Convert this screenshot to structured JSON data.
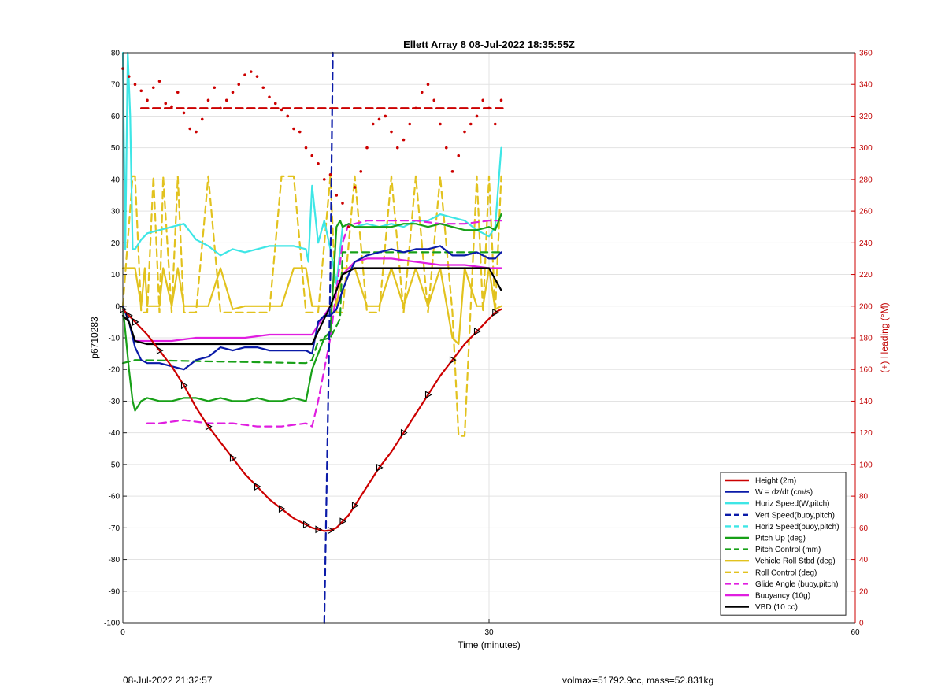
{
  "footer": {
    "left": "08-Jul-2022 21:32:57",
    "right": "volmax=51792.9cc, mass=52.831kg"
  },
  "colors": {
    "red": "#cc0000",
    "blue": "#0a1aa8",
    "cyan": "#3ee6e6",
    "green": "#17a017",
    "yellow": "#e2c21e",
    "magenta": "#e01ee0",
    "black": "#000000",
    "grid": "#e3e3e3"
  },
  "chart_data": {
    "type": "line",
    "title": "Ellett Array 8 08-Jul-2022 18:35:55Z",
    "xlabel": "Time (minutes)",
    "ylabel": "p6710283",
    "y2label": "(+) Heading (°M)",
    "xlim": [
      0,
      60
    ],
    "ylim": [
      -100,
      80
    ],
    "y2lim": [
      0,
      360
    ],
    "xticks": [
      0,
      30,
      60
    ],
    "yticks": [
      -100,
      -90,
      -80,
      -70,
      -60,
      -50,
      -40,
      -30,
      -20,
      -10,
      0,
      10,
      20,
      30,
      40,
      50,
      60,
      70,
      80
    ],
    "y2ticks": [
      0,
      20,
      40,
      60,
      80,
      100,
      120,
      140,
      160,
      180,
      200,
      220,
      240,
      260,
      280,
      300,
      320,
      340,
      360
    ],
    "grid": true,
    "legend_position": "bottom-right",
    "series": [
      {
        "name": "Height (2m)",
        "color": "red",
        "style": "solid",
        "x": [
          0,
          0.5,
          1,
          2,
          3,
          4,
          5,
          6,
          7,
          8,
          9,
          10,
          11,
          12,
          13,
          14,
          15,
          15.5,
          16,
          16.5,
          17,
          17.5,
          18,
          18.5,
          19,
          20,
          21,
          22,
          23,
          24,
          25,
          26,
          27,
          28,
          29,
          30,
          30.5,
          31
        ],
        "y": [
          -1,
          -3,
          -5,
          -9,
          -14,
          -19,
          -25,
          -32,
          -38,
          -43,
          -48,
          -53,
          -57,
          -61,
          -64,
          -67,
          -69,
          -70,
          -70.5,
          -71,
          -70.8,
          -70,
          -68,
          -66,
          -63,
          -57,
          -51,
          -46,
          -40,
          -34,
          -28,
          -22,
          -17,
          -12,
          -8,
          -4,
          -2,
          -1
        ]
      },
      {
        "name": "W = dz/dt (cm/s)",
        "color": "blue",
        "style": "solid",
        "x": [
          0,
          0.5,
          1,
          1.5,
          2,
          3,
          4,
          5,
          6,
          7,
          8,
          9,
          10,
          11,
          12,
          13,
          14,
          15,
          15.5,
          16,
          16.5,
          17,
          17.5,
          18,
          18.5,
          19,
          20,
          21,
          22,
          23,
          24,
          25,
          26,
          27,
          28,
          29,
          30,
          30.5,
          31
        ],
        "y": [
          0,
          -5,
          -13,
          -17,
          -18,
          -18,
          -19,
          -20,
          -17,
          -16,
          -13,
          -14,
          -13,
          -13,
          -14,
          -14,
          -14,
          -14,
          -15,
          -5,
          -3,
          -3,
          -1,
          5,
          10,
          14,
          16,
          17,
          18,
          17,
          18,
          18,
          19,
          16,
          16,
          17,
          15,
          15,
          17
        ]
      },
      {
        "name": "Horiz Speed(W,pitch)",
        "color": "cyan",
        "style": "solid",
        "x": [
          0,
          0.2,
          0.4,
          0.6,
          0.8,
          1,
          1.5,
          2,
          3,
          4,
          5,
          6,
          7,
          8,
          9,
          10,
          11,
          12,
          13,
          14,
          15,
          15.2,
          15.5,
          16,
          16.5,
          17,
          17.5,
          18,
          18.5,
          19,
          20,
          21,
          22,
          23,
          24,
          25,
          26,
          27,
          28,
          29,
          30,
          30.5,
          31
        ],
        "y": [
          80,
          18,
          80,
          60,
          18,
          18,
          21,
          23,
          24,
          25,
          26,
          21,
          19,
          16,
          18,
          17,
          18,
          19,
          19,
          19,
          18,
          14,
          38,
          20,
          27,
          18,
          7,
          25,
          26,
          25,
          26,
          25,
          26,
          25,
          27,
          27,
          29,
          28,
          27,
          24,
          22,
          25,
          50
        ]
      },
      {
        "name": "Vert Speed(buoy,pitch)",
        "color": "blue",
        "style": "dashed",
        "x": [
          16.5,
          17,
          17.2
        ],
        "y": [
          -100,
          10,
          80
        ]
      },
      {
        "name": "Horiz Speed(buoy,pitch)",
        "color": "cyan",
        "style": "dashed",
        "x": [],
        "y": []
      },
      {
        "name": "Pitch Up (deg)",
        "color": "green",
        "style": "solid",
        "x": [
          0,
          0.5,
          0.8,
          1,
          1.5,
          2,
          3,
          4,
          5,
          6,
          7,
          8,
          9,
          10,
          11,
          12,
          13,
          14,
          15,
          15.5,
          16,
          16.5,
          17,
          17.5,
          17.8,
          18,
          18.5,
          19,
          20,
          21,
          22,
          23,
          24,
          25,
          26,
          27,
          28,
          29,
          30,
          30.5,
          31
        ],
        "y": [
          0,
          -20,
          -30,
          -33,
          -30,
          -29,
          -30,
          -30,
          -29,
          -29,
          -30,
          -29,
          -30,
          -30,
          -29,
          -30,
          -30,
          -29,
          -30,
          -20,
          -15,
          -10,
          -8,
          25,
          27,
          25,
          26,
          25,
          25,
          25,
          25,
          26,
          26,
          25,
          26,
          25,
          24,
          24,
          25,
          24,
          29
        ]
      },
      {
        "name": "Pitch Control (mm)",
        "color": "green",
        "style": "dashed",
        "x": [
          0,
          1,
          15,
          15.5,
          16,
          17,
          17.8,
          18,
          19,
          30,
          31
        ],
        "y": [
          -18,
          -17,
          -18,
          -17,
          -11,
          -10,
          -4,
          17,
          17,
          17,
          17
        ]
      },
      {
        "name": "Vehicle Roll Stbd (deg)",
        "color": "yellow",
        "style": "solid",
        "x": [
          0,
          1,
          1.5,
          1.8,
          2,
          3,
          3.3,
          4,
          4.5,
          5,
          6,
          7,
          8,
          9,
          10,
          11,
          12,
          13,
          14,
          15,
          15.5,
          16,
          17,
          17.5,
          18,
          19,
          20,
          21,
          22,
          23,
          24,
          25,
          26,
          27,
          27.5,
          28,
          29,
          29.5,
          30,
          30.5,
          31
        ],
        "y": [
          12,
          12,
          0,
          12,
          0,
          0,
          12,
          0,
          12,
          0,
          0,
          0,
          12,
          -1,
          0,
          0,
          0,
          0,
          12,
          12,
          0,
          0,
          0,
          0,
          12,
          12,
          0,
          0,
          12,
          0,
          12,
          0,
          12,
          -10,
          -12,
          12,
          0,
          0,
          12,
          -1,
          0
        ]
      },
      {
        "name": "Roll Control (deg)",
        "color": "yellow",
        "style": "dashed",
        "x": [
          0,
          0.8,
          1,
          1.5,
          2,
          2.5,
          3,
          3.3,
          4,
          4.5,
          5,
          6,
          7,
          8,
          9,
          10,
          11,
          12,
          13,
          14,
          15,
          15.5,
          16,
          17,
          17.5,
          18,
          19,
          20,
          21,
          22,
          23,
          24,
          25,
          26,
          27,
          27.5,
          28,
          29,
          29.5,
          30,
          30.5,
          31
        ],
        "y": [
          0,
          41,
          41,
          -2,
          -2,
          41,
          -2,
          41,
          -2,
          41,
          -2,
          -2,
          41,
          -2,
          -2,
          -2,
          -2,
          -2,
          41,
          41,
          -2,
          -2,
          -2,
          41,
          -2,
          -2,
          41,
          -2,
          -2,
          41,
          -2,
          41,
          -2,
          41,
          -2,
          -41,
          -41,
          41,
          -2,
          41,
          -2,
          41
        ]
      },
      {
        "name": "Glide Angle (buoy,pitch)",
        "color": "magenta",
        "style": "dashed",
        "x": [
          2,
          3,
          5,
          7,
          9,
          11,
          13,
          15,
          15.5,
          16,
          17,
          17.5,
          18,
          18.5,
          19,
          20,
          22,
          24,
          26,
          28,
          30,
          31
        ],
        "y": [
          -37,
          -37,
          -36,
          -37,
          -37,
          -38,
          -38,
          -37,
          -38,
          -30,
          -10,
          5,
          20,
          26,
          26,
          27,
          27,
          27,
          26,
          26,
          27,
          27
        ]
      },
      {
        "name": "Buoyancy (10g)",
        "color": "magenta",
        "style": "solid",
        "x": [
          1,
          2,
          4,
          6,
          8,
          10,
          12,
          14,
          15.5,
          16,
          17,
          17.5,
          18,
          19,
          20,
          22,
          24,
          26,
          28,
          30,
          31
        ],
        "y": [
          -11,
          -11,
          -11,
          -10,
          -10,
          -10,
          -9,
          -9,
          -9,
          -6,
          0,
          5,
          10,
          14,
          15,
          15,
          14,
          13,
          13,
          12,
          12
        ]
      },
      {
        "name": "VBD (10 cc)",
        "color": "black",
        "style": "solid",
        "x": [
          0,
          0.5,
          1,
          2,
          4,
          6,
          8,
          10,
          12,
          14,
          15.5,
          16,
          17,
          18,
          19,
          20,
          22,
          24,
          26,
          28,
          30,
          31
        ],
        "y": [
          -3,
          -5,
          -11,
          -12,
          -12,
          -12,
          -12,
          -12,
          -12,
          -12,
          -12,
          -8,
          0,
          10,
          12,
          12,
          12,
          12,
          12,
          12,
          12,
          5
        ]
      }
    ],
    "heading": {
      "name": "Heading",
      "axis": "right",
      "color": "red",
      "x": [
        0,
        0.5,
        1,
        1.5,
        2,
        2.5,
        3,
        3.5,
        4,
        4.5,
        5,
        5.5,
        6,
        6.5,
        7,
        7.5,
        8,
        8.5,
        9,
        9.5,
        10,
        10.5,
        11,
        11.5,
        12,
        12.5,
        13,
        13.5,
        14,
        14.5,
        15,
        15.5,
        16,
        16.5,
        17,
        17.5,
        18,
        18.5,
        19,
        19.5,
        20,
        20.5,
        21,
        21.5,
        22,
        22.5,
        23,
        23.5,
        24,
        24.5,
        25,
        25.5,
        26,
        26.5,
        27,
        27.5,
        28,
        28.5,
        29,
        29.5,
        30,
        30.5,
        31
      ],
      "y": [
        350,
        345,
        340,
        336,
        330,
        338,
        342,
        328,
        326,
        335,
        322,
        312,
        310,
        318,
        330,
        338,
        325,
        330,
        335,
        340,
        346,
        348,
        345,
        338,
        332,
        328,
        324,
        320,
        312,
        310,
        300,
        295,
        290,
        280,
        283,
        270,
        265,
        250,
        275,
        285,
        300,
        315,
        318,
        320,
        310,
        300,
        305,
        315,
        325,
        335,
        340,
        330,
        315,
        300,
        285,
        295,
        310,
        315,
        320,
        330,
        325,
        315,
        330
      ]
    },
    "heading_reference": {
      "name": "Heading reference",
      "axis": "right",
      "color": "red",
      "style": "dashed",
      "x": [
        1.5,
        31.5
      ],
      "y": [
        325,
        325
      ]
    }
  }
}
